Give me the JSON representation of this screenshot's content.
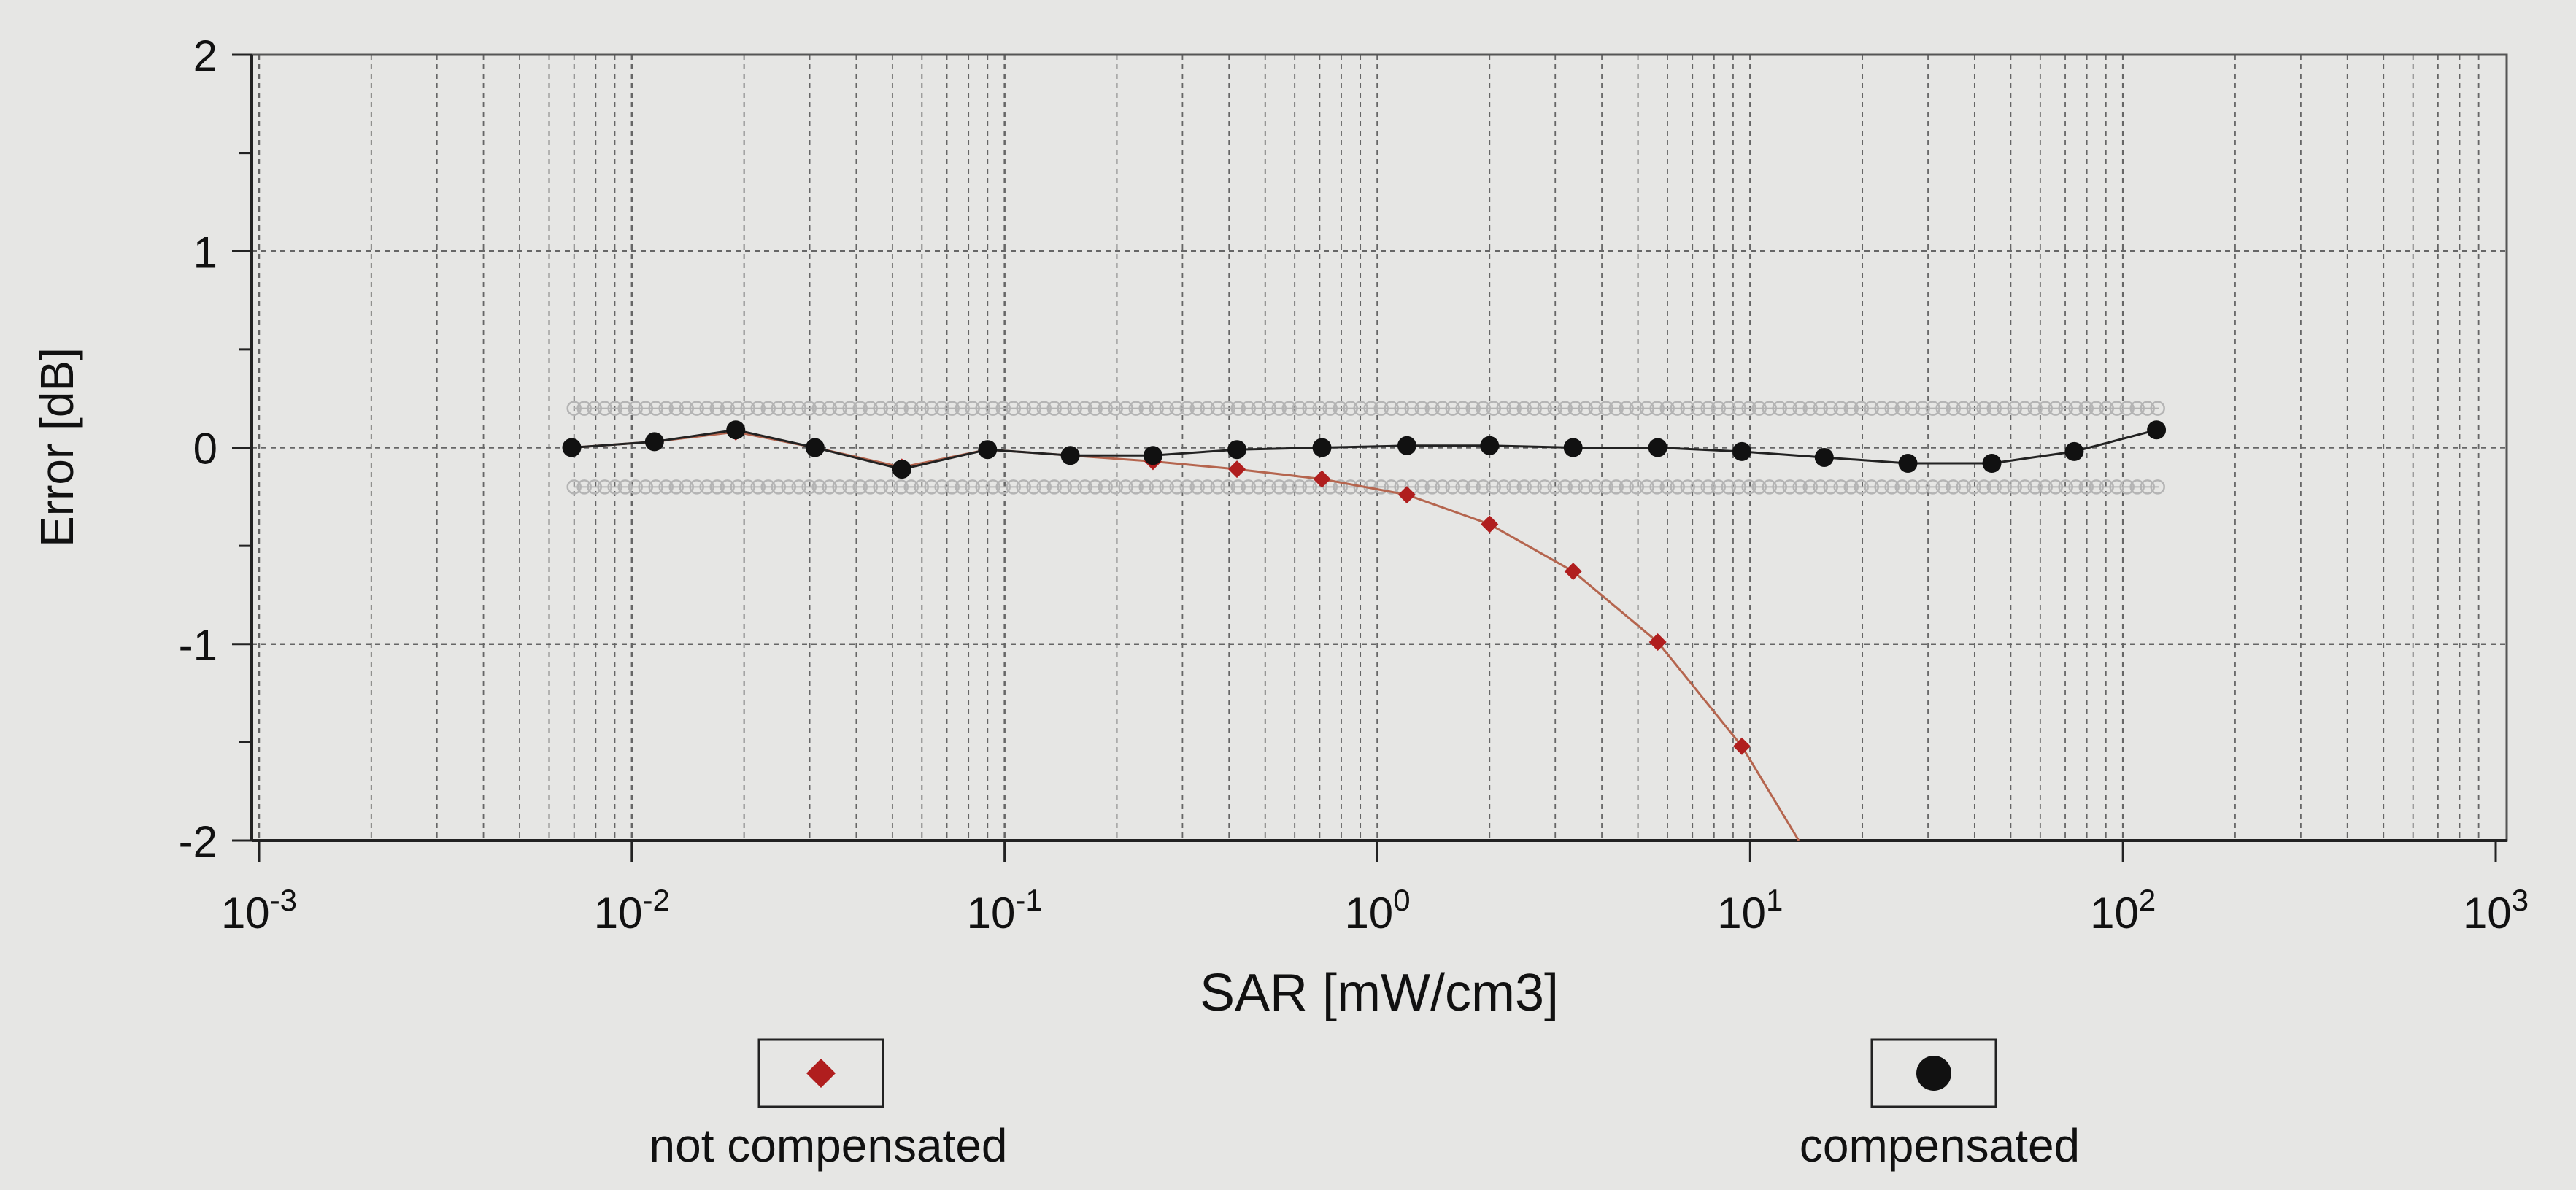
{
  "chart_data": {
    "type": "line",
    "title": "",
    "xlabel": "SAR [mW/cm3]",
    "ylabel": "Error [dB]",
    "x_scale": "log",
    "xlim": [
      0.001,
      1000
    ],
    "ylim": [
      -2,
      2
    ],
    "x_ticks": [
      {
        "value": 0.001,
        "base": "10",
        "exp": "-3"
      },
      {
        "value": 0.01,
        "base": "10",
        "exp": "-2"
      },
      {
        "value": 0.1,
        "base": "10",
        "exp": "-1"
      },
      {
        "value": 1,
        "base": "10",
        "exp": "0"
      },
      {
        "value": 10,
        "base": "10",
        "exp": "1"
      },
      {
        "value": 100,
        "base": "10",
        "exp": "2"
      },
      {
        "value": 1000,
        "base": "10",
        "exp": "3"
      }
    ],
    "y_ticks": [
      {
        "value": 2,
        "label": "2"
      },
      {
        "value": 1,
        "label": "1"
      },
      {
        "value": 0,
        "label": "0"
      },
      {
        "value": -1,
        "label": "-1"
      },
      {
        "value": -2,
        "label": "-2"
      }
    ],
    "grid": true,
    "legend_position": "bottom",
    "series": [
      {
        "name": "not compensated",
        "marker": "diamond",
        "color": "#b01e1e",
        "line_color": "#b5654e",
        "x": [
          0.0069,
          0.0115,
          0.019,
          0.031,
          0.053,
          0.09,
          0.15,
          0.25,
          0.42,
          0.71,
          1.2,
          2.0,
          3.35,
          5.65,
          9.5,
          13.5
        ],
        "y": [
          0.0,
          0.03,
          0.08,
          0.0,
          -0.1,
          -0.01,
          -0.04,
          -0.07,
          -0.11,
          -0.16,
          -0.24,
          -0.39,
          -0.63,
          -0.99,
          -1.52,
          -2.0
        ]
      },
      {
        "name": "compensated",
        "marker": "circle",
        "color": "#111111",
        "line_color": "#222222",
        "x": [
          0.0069,
          0.0115,
          0.019,
          0.031,
          0.053,
          0.09,
          0.15,
          0.25,
          0.42,
          0.71,
          1.2,
          2.0,
          3.35,
          5.65,
          9.5,
          15.8,
          26.5,
          44.5,
          74.0,
          123.0
        ],
        "y": [
          0.0,
          0.03,
          0.09,
          0.0,
          -0.11,
          -0.01,
          -0.04,
          -0.04,
          -0.01,
          0.0,
          0.01,
          0.01,
          0.0,
          0.0,
          -0.02,
          -0.05,
          -0.08,
          -0.08,
          -0.02,
          0.09
        ]
      },
      {
        "name": "",
        "marker": "ring",
        "color": "#b4b4b4",
        "x_range": [
          0.007,
          125
        ],
        "y": 0.2
      },
      {
        "name": "",
        "marker": "ring",
        "color": "#b4b4b4",
        "x_range": [
          0.007,
          125
        ],
        "y": -0.2
      }
    ]
  }
}
